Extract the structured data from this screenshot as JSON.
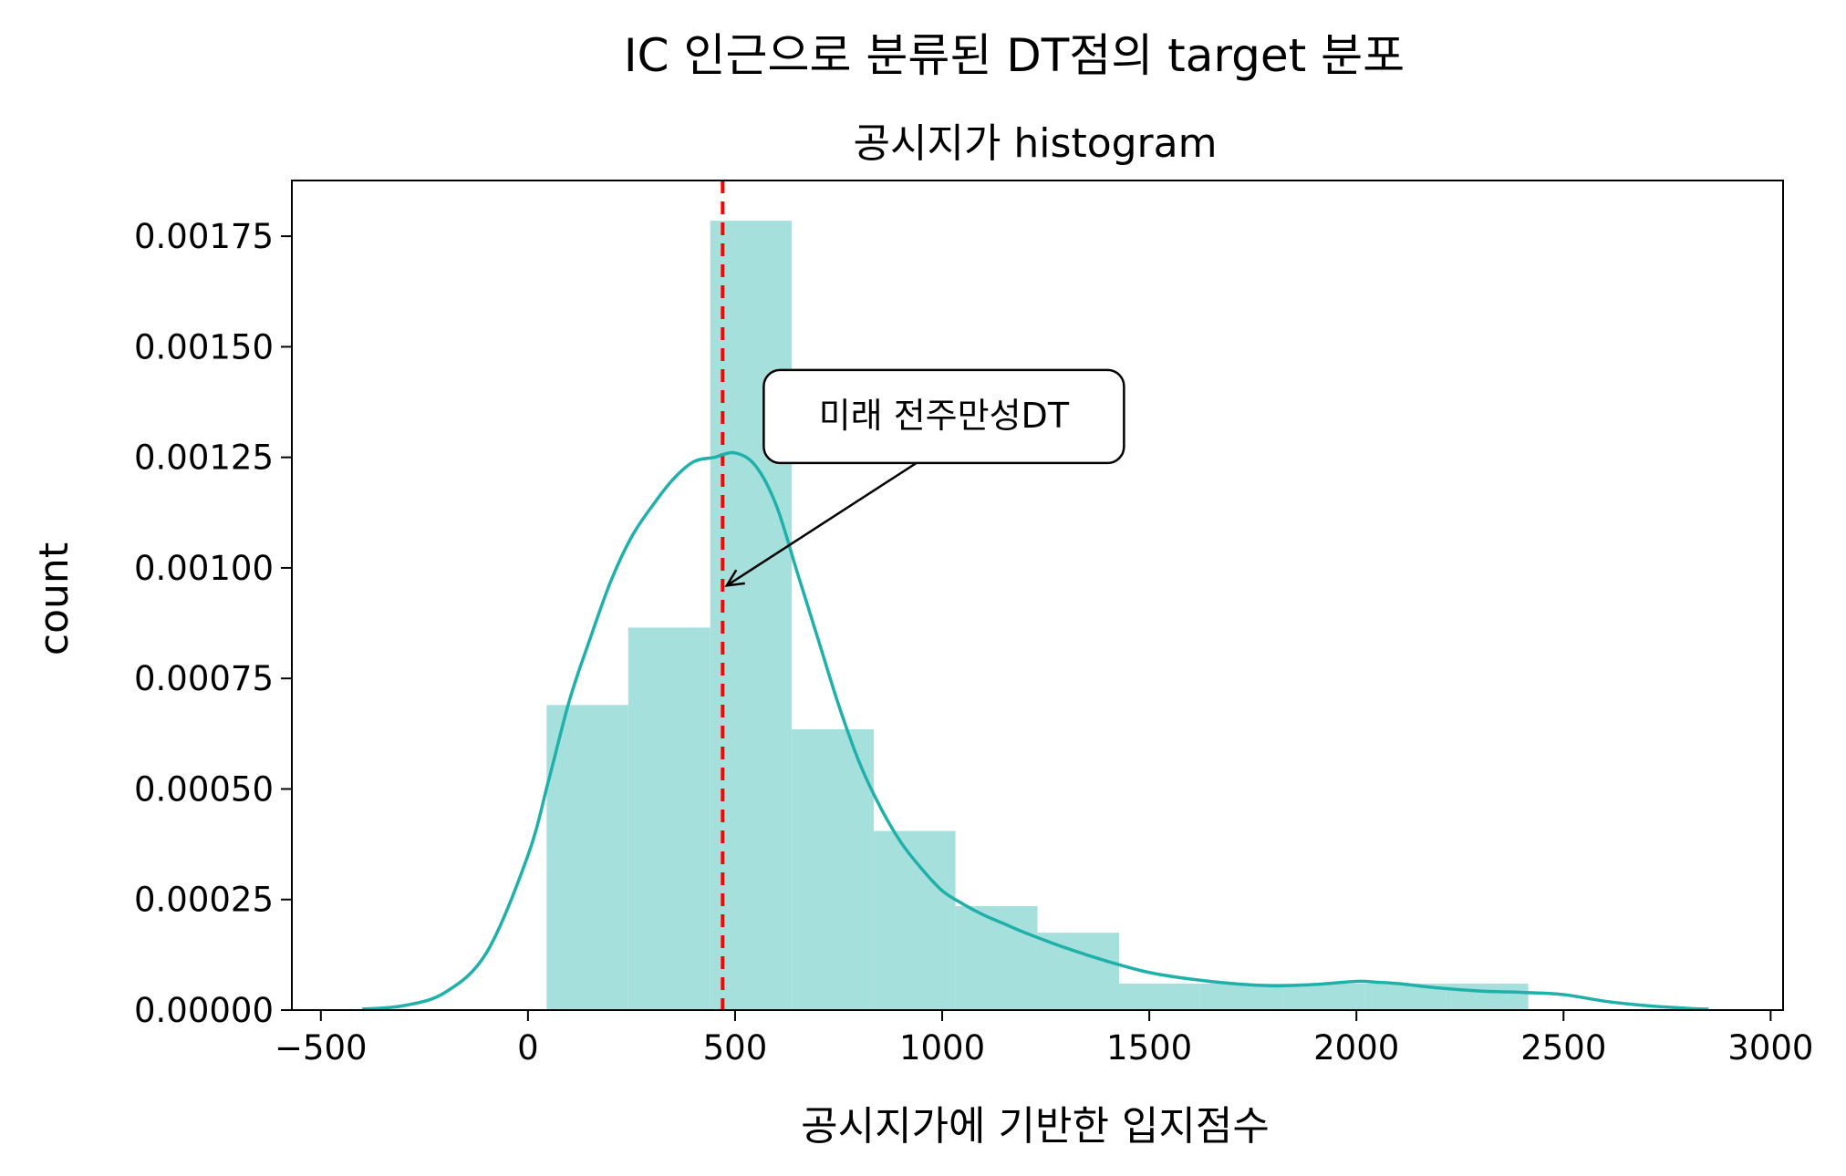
{
  "chart_data": {
    "type": "histogram",
    "title": "IC 인근으로 분류된 DT점의 target 분포",
    "subtitle": "공시지가 histogram",
    "xlabel": "공시지가에 기반한 입지점수",
    "ylabel": "count",
    "xlim": [
      -570,
      3030
    ],
    "ylim": [
      0,
      0.001876
    ],
    "x_ticks": [
      -500,
      0,
      500,
      1000,
      1500,
      2000,
      2500,
      3000
    ],
    "x_tick_labels": [
      "−500",
      "0",
      "500",
      "1000",
      "1500",
      "2000",
      "2500",
      "3000"
    ],
    "y_ticks": [
      0,
      0.00025,
      0.0005,
      0.00075,
      0.001,
      0.00125,
      0.0015,
      0.00175
    ],
    "y_tick_labels": [
      "0.00000",
      "0.00025",
      "0.00050",
      "0.00075",
      "0.00100",
      "0.00125",
      "0.00150",
      "0.00175"
    ],
    "bins": [
      {
        "x0": 45,
        "x1": 242,
        "density": 0.00069
      },
      {
        "x0": 242,
        "x1": 440,
        "density": 0.000865
      },
      {
        "x0": 440,
        "x1": 637,
        "density": 0.001785
      },
      {
        "x0": 637,
        "x1": 835,
        "density": 0.000635
      },
      {
        "x0": 835,
        "x1": 1032,
        "density": 0.000405
      },
      {
        "x0": 1032,
        "x1": 1230,
        "density": 0.000235
      },
      {
        "x0": 1230,
        "x1": 1427,
        "density": 0.000175
      },
      {
        "x0": 1427,
        "x1": 1625,
        "density": 6e-05
      },
      {
        "x0": 1625,
        "x1": 1822,
        "density": 6e-05
      },
      {
        "x0": 1822,
        "x1": 2020,
        "density": 6e-05
      },
      {
        "x0": 2020,
        "x1": 2217,
        "density": 6e-05
      },
      {
        "x0": 2217,
        "x1": 2415,
        "density": 6e-05
      }
    ],
    "kde": {
      "x": [
        -400,
        -300,
        -200,
        -100,
        0,
        50,
        100,
        150,
        200,
        250,
        300,
        350,
        400,
        450,
        500,
        550,
        600,
        650,
        700,
        750,
        800,
        850,
        900,
        950,
        1000,
        1050,
        1100,
        1150,
        1200,
        1300,
        1400,
        1500,
        1600,
        1700,
        1800,
        1900,
        2000,
        2050,
        2100,
        2200,
        2300,
        2400,
        2500,
        2600,
        2700,
        2800,
        2850
      ],
      "y": [
        2e-06,
        1e-05,
        4e-05,
        0.00013,
        0.00035,
        0.00052,
        0.0007,
        0.00084,
        0.00097,
        0.00107,
        0.00114,
        0.0012,
        0.00124,
        0.00125,
        0.00126,
        0.00123,
        0.00114,
        0.00099,
        0.00084,
        0.00069,
        0.00056,
        0.00046,
        0.00038,
        0.00032,
        0.00027,
        0.00024,
        0.000215,
        0.000195,
        0.000175,
        0.00014,
        0.00011,
        8.5e-05,
        7e-05,
        6e-05,
        5.5e-05,
        5.8e-05,
        6.5e-05,
        6.3e-05,
        6e-05,
        5e-05,
        4.3e-05,
        4e-05,
        3.5e-05,
        2e-05,
        1e-05,
        4e-06,
        2e-06
      ]
    },
    "reference_line": {
      "x": 470,
      "color": "#ff0000"
    },
    "annotation": {
      "text": "미래 전주만성DT",
      "box_x": 600,
      "box_y": 0.00133,
      "target_x": 480,
      "target_y": 0.00096
    },
    "colors": {
      "bars": "#a6e0dc",
      "kde": "#20b0aa",
      "reference": "#ff0000"
    }
  }
}
